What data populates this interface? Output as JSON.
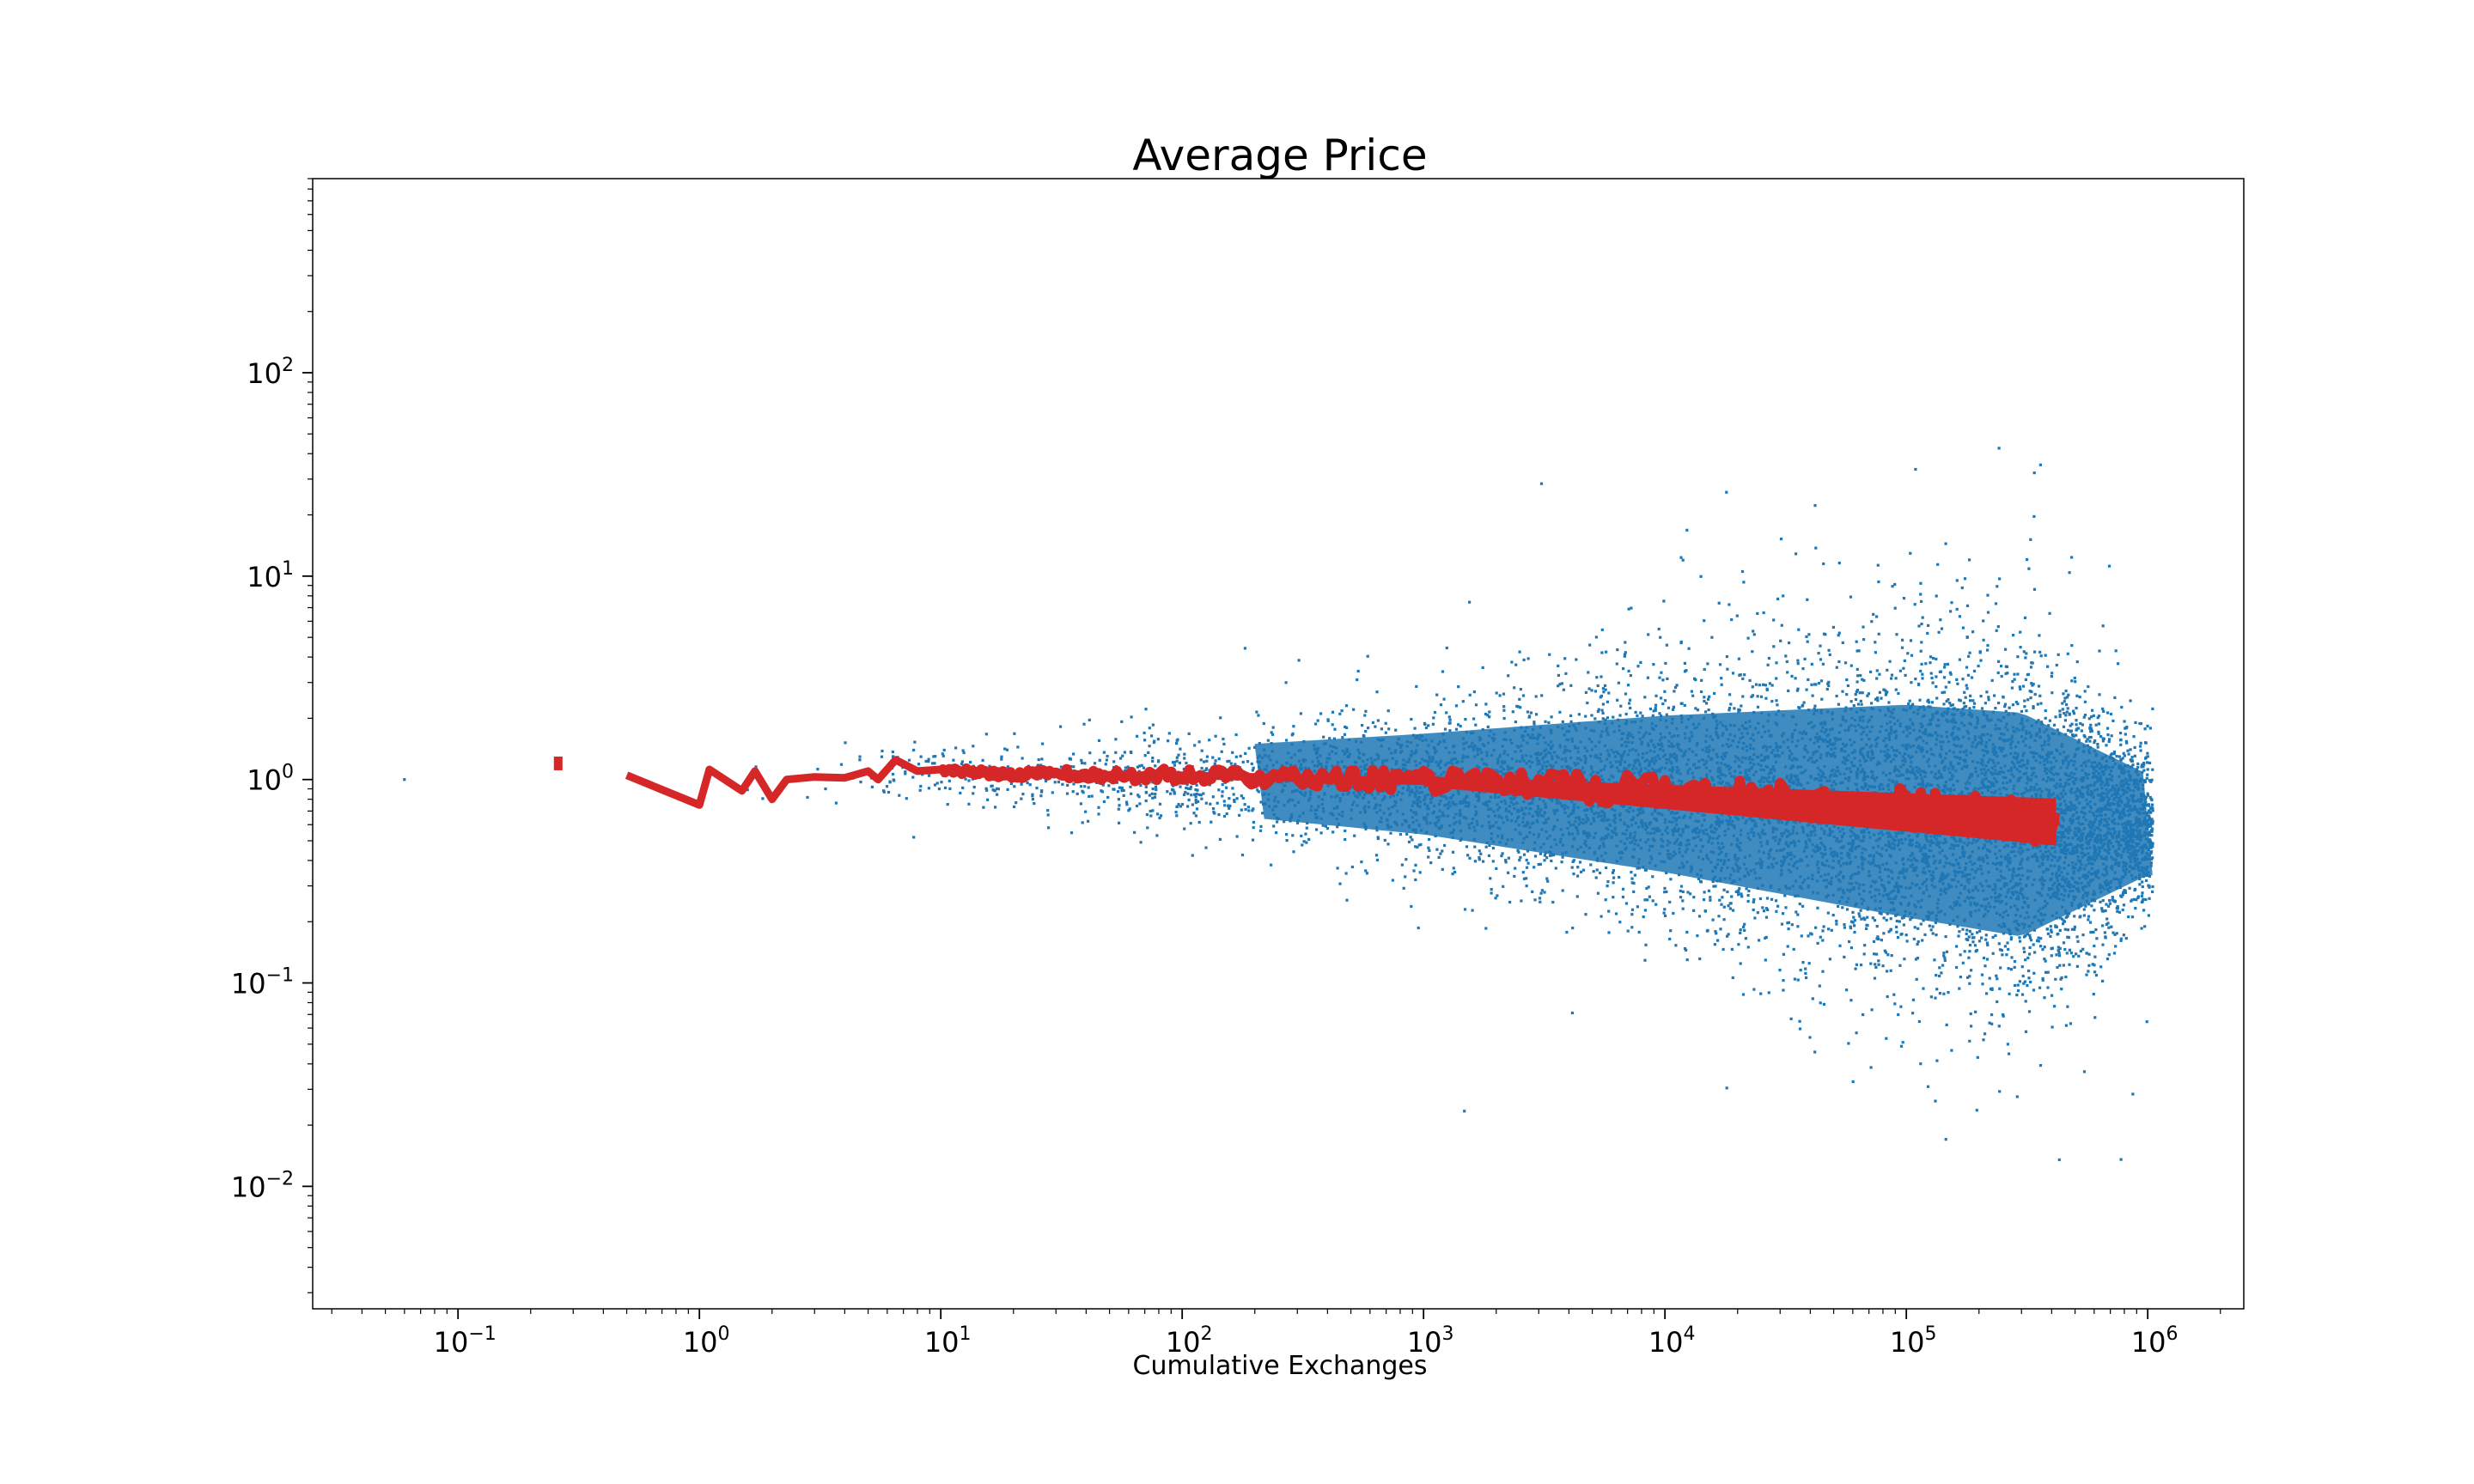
{
  "chart_data": {
    "type": "scatter",
    "title": "Average Price",
    "xlabel": "Cumulative Exchanges",
    "ylabel": "",
    "xscale": "log",
    "yscale": "log",
    "xlim": [
      0.025,
      2500000
    ],
    "ylim": [
      0.0025,
      900
    ],
    "grid": false,
    "x_tick_labels": [
      {
        "value": 0.1,
        "base": "10",
        "exp": "−1"
      },
      {
        "value": 1,
        "base": "10",
        "exp": "0"
      },
      {
        "value": 10,
        "base": "10",
        "exp": "1"
      },
      {
        "value": 100,
        "base": "10",
        "exp": "2"
      },
      {
        "value": 1000,
        "base": "10",
        "exp": "3"
      },
      {
        "value": 10000,
        "base": "10",
        "exp": "4"
      },
      {
        "value": 100000,
        "base": "10",
        "exp": "5"
      },
      {
        "value": 1000000,
        "base": "10",
        "exp": "6"
      }
    ],
    "y_tick_labels": [
      {
        "value": 0.01,
        "base": "10",
        "exp": "−2"
      },
      {
        "value": 0.1,
        "base": "10",
        "exp": "−1"
      },
      {
        "value": 1,
        "base": "10",
        "exp": "0"
      },
      {
        "value": 10,
        "base": "10",
        "exp": "1"
      },
      {
        "value": 100,
        "base": "10",
        "exp": "2"
      }
    ],
    "series": [
      {
        "kind": "scatter",
        "color": "#1f77b4",
        "summary": [
          {
            "x": 0.06,
            "y_center": 1.0,
            "spread_decades": 0.0
          },
          {
            "x": 1,
            "y_center": 1.0,
            "spread_decades": 0.1
          },
          {
            "x": 10,
            "y_center": 1.05,
            "spread_decades": 0.18
          },
          {
            "x": 100,
            "y_center": 1.0,
            "spread_decades": 0.28
          },
          {
            "x": 1000,
            "y_center": 0.95,
            "spread_decades": 0.45
          },
          {
            "x": 10000,
            "y_center": 0.85,
            "spread_decades": 0.7
          },
          {
            "x": 100000,
            "y_center": 0.7,
            "spread_decades": 0.95
          },
          {
            "x": 300000,
            "y_center": 0.6,
            "spread_decades": 1.0
          },
          {
            "x": 1000000,
            "y_center": 0.6,
            "spread_decades": 0.45
          }
        ]
      },
      {
        "kind": "line",
        "color": "#d62728",
        "points": [
          [
            0.5,
            1.05
          ],
          [
            1.0,
            0.75
          ],
          [
            1.1,
            1.12
          ],
          [
            1.5,
            0.88
          ],
          [
            1.7,
            1.1
          ],
          [
            2.0,
            0.8
          ],
          [
            2.3,
            1.0
          ],
          [
            3.0,
            1.03
          ],
          [
            4.0,
            1.02
          ],
          [
            5.0,
            1.1
          ],
          [
            5.5,
            1.0
          ],
          [
            6.5,
            1.25
          ],
          [
            8.0,
            1.1
          ],
          [
            10,
            1.12
          ],
          [
            15,
            1.08
          ],
          [
            20,
            1.05
          ],
          [
            30,
            1.07
          ],
          [
            50,
            1.05
          ],
          [
            100,
            1.05
          ],
          [
            200,
            1.03
          ],
          [
            500,
            1.0
          ],
          [
            1000,
            0.98
          ],
          [
            3000,
            0.93
          ],
          [
            10000,
            0.88
          ],
          [
            30000,
            0.8
          ],
          [
            100000,
            0.72
          ],
          [
            200000,
            0.66
          ],
          [
            430000,
            0.62
          ]
        ],
        "band_until": 430000
      }
    ],
    "isolated_marks": [
      {
        "x": 0.26,
        "y": 1.2,
        "color": "#d62728"
      }
    ]
  }
}
